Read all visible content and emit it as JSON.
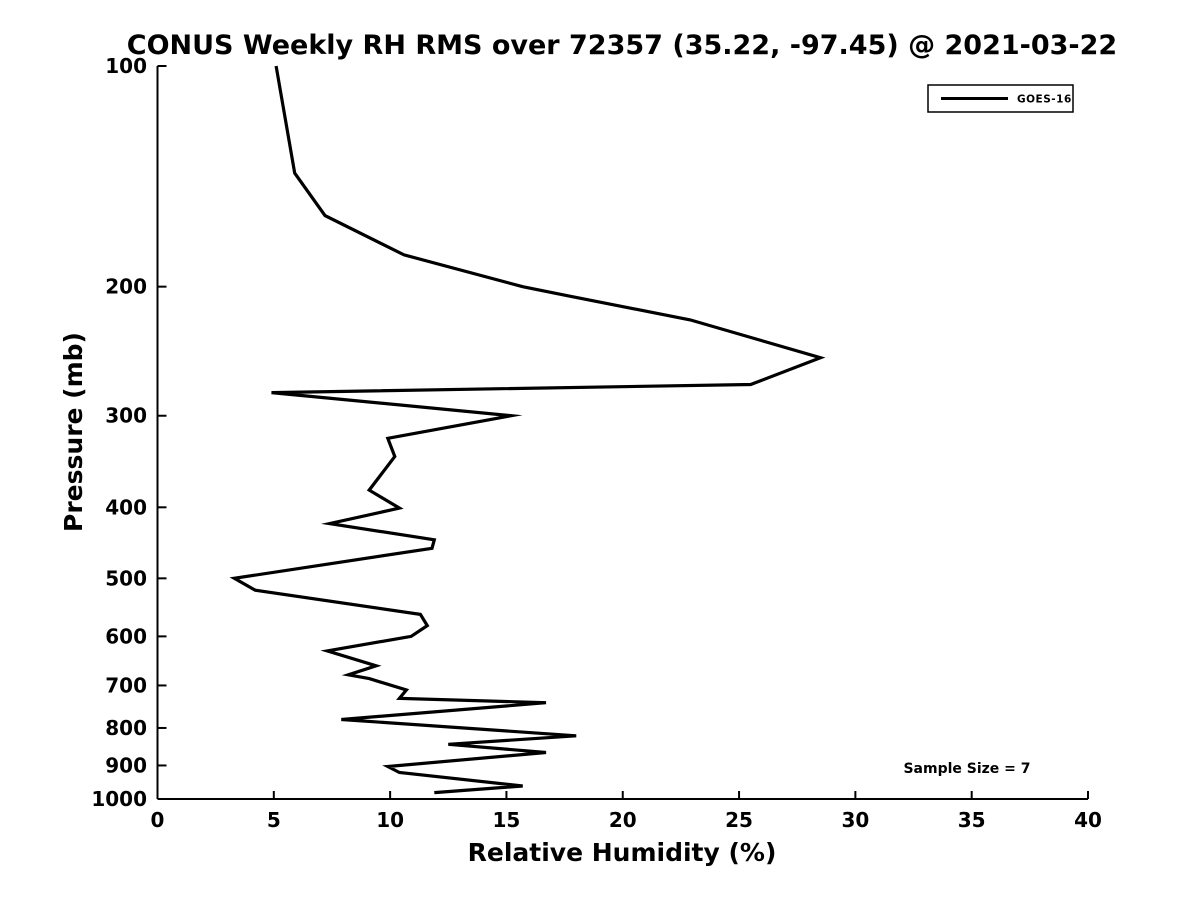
{
  "page": {
    "background": "#ffffff"
  },
  "colors": {
    "axis": "#000000",
    "text": "#000000",
    "curve": "#000000",
    "background": "#ffffff"
  },
  "chart_data": {
    "type": "line",
    "title": "CONUS Weekly RH RMS over 72357 (35.22, -97.45) @ 2021-03-22",
    "xlabel": "Relative Humidity (%)",
    "ylabel": "Pressure (mb)",
    "xlim": [
      0,
      40
    ],
    "ylim": [
      100,
      1000
    ],
    "y_scale": "log",
    "y_inverted": true,
    "grid": false,
    "x_ticks": [
      0,
      5,
      10,
      15,
      20,
      25,
      30,
      35,
      40
    ],
    "y_ticks": [
      100,
      200,
      300,
      400,
      500,
      600,
      700,
      800,
      900,
      1000
    ],
    "legend": {
      "position": "top-right",
      "entries": [
        {
          "label": "GOES-16",
          "color": "#000000"
        }
      ]
    },
    "annotations": [
      {
        "text": "Sample Size = 7"
      }
    ],
    "series": [
      {
        "name": "GOES-16",
        "color": "#000000",
        "line_width": 3.2,
        "points_rh_pressure": [
          [
            5.1,
            100
          ],
          [
            5.9,
            140
          ],
          [
            7.2,
            160
          ],
          [
            10.6,
            181
          ],
          [
            15.7,
            200
          ],
          [
            17.7,
            206
          ],
          [
            22.9,
            222
          ],
          [
            28.5,
            250
          ],
          [
            25.5,
            272
          ],
          [
            4.9,
            279
          ],
          [
            15.2,
            300
          ],
          [
            9.9,
            322
          ],
          [
            10.2,
            341
          ],
          [
            9.1,
            379
          ],
          [
            10.4,
            401
          ],
          [
            7.4,
            421
          ],
          [
            11.9,
            443
          ],
          [
            11.8,
            455
          ],
          [
            3.3,
            500
          ],
          [
            4.2,
            519
          ],
          [
            11.3,
            560
          ],
          [
            11.6,
            580
          ],
          [
            10.9,
            600
          ],
          [
            7.3,
            628
          ],
          [
            9.4,
            658
          ],
          [
            8.2,
            677
          ],
          [
            9.1,
            685
          ],
          [
            10.7,
            710
          ],
          [
            10.4,
            729
          ],
          [
            16.7,
            739
          ],
          [
            7.9,
            779
          ],
          [
            18.0,
            820
          ],
          [
            12.5,
            842
          ],
          [
            16.7,
            864
          ],
          [
            9.9,
            903
          ],
          [
            10.4,
            920
          ],
          [
            15.7,
            960
          ],
          [
            11.9,
            980
          ]
        ]
      }
    ]
  }
}
